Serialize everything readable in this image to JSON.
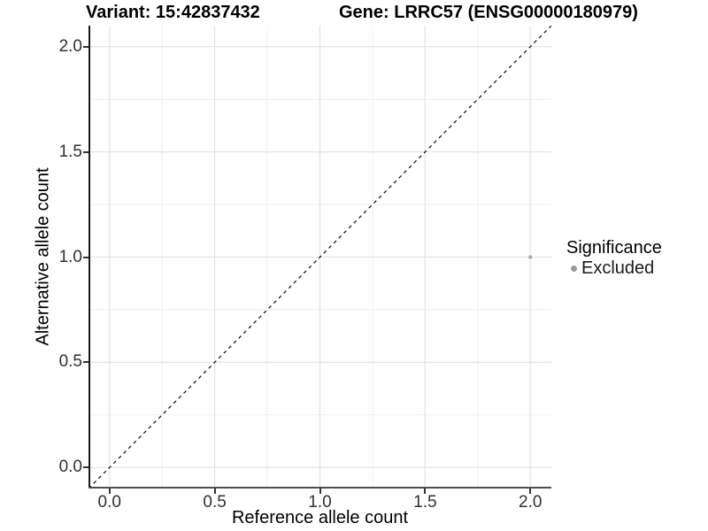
{
  "header": {
    "variant_title": "Variant: 15:42837432",
    "gene_title": "Gene: LRRC57 (ENSG00000180979)"
  },
  "x_axis": {
    "label": "Reference allele count"
  },
  "y_axis": {
    "label": "Alternative allele count"
  },
  "legend": {
    "title": "Significance",
    "items": [
      {
        "label": "Excluded",
        "color": "#9B9B9B"
      }
    ]
  },
  "colors": {
    "background": "#ffffff",
    "grid_major": "#E4E4E4",
    "grid_minor": "#EFEFEF",
    "axis_line_left": "#1a1a1a",
    "axis_line_bottom": "#4d4d4d",
    "tick_mark": "#333333",
    "tick_label": "#303030",
    "reference_line": "#1a1a1a",
    "point": "#ACACAC"
  },
  "chart_data": {
    "type": "scatter",
    "title": "Variant: 15:42837432    Gene: LRRC57 (ENSG00000180979)",
    "xlabel": "Reference allele count",
    "ylabel": "Alternative allele count",
    "xlim": [
      -0.1,
      2.1
    ],
    "ylim": [
      -0.1,
      2.1
    ],
    "x_major_ticks": [
      0.0,
      0.5,
      1.0,
      1.5,
      2.0
    ],
    "y_major_ticks": [
      0.0,
      0.5,
      1.0,
      1.5,
      2.0
    ],
    "x_minor_ticks": [
      0.25,
      0.75,
      1.25,
      1.75
    ],
    "y_minor_ticks": [
      0.25,
      0.75,
      1.25,
      1.75
    ],
    "tick_label_format": "one-decimal",
    "grid": true,
    "legend_position": "right",
    "series": [
      {
        "name": "Excluded",
        "color": "#ACACAC",
        "marker_size": 2.2,
        "points": [
          [
            2.0,
            1.0
          ]
        ]
      }
    ],
    "reference_line": {
      "type": "identity",
      "equation": "y = x",
      "style": "dashed",
      "color": "#1a1a1a"
    }
  }
}
